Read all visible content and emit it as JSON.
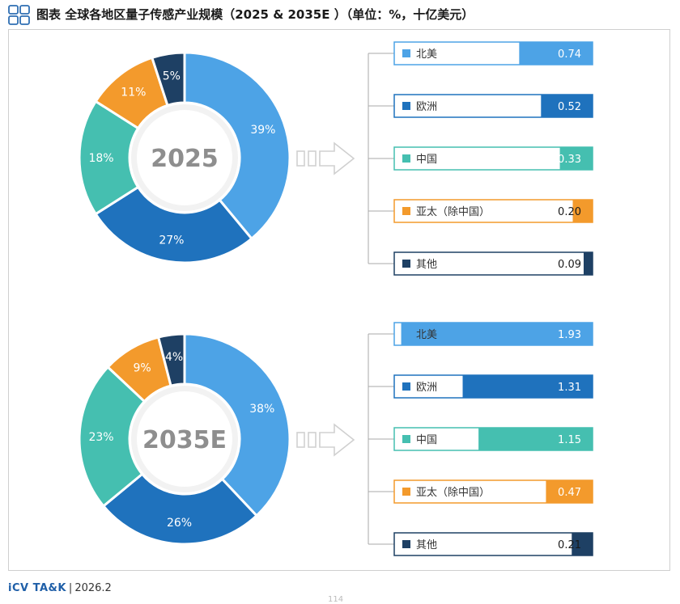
{
  "header": {
    "title": "图表 全球各地区量子传感产业规模（2025 & 2035E ）（单位：%，十亿美元）"
  },
  "colors": {
    "北美": "#4da3e6",
    "欧洲": "#1f72bd",
    "中国": "#45bfb0",
    "亚太（除中国）": "#f39a2c",
    "其他": "#1e4064",
    "arrow": "#d0d0d0",
    "center": "#8e8e8e"
  },
  "chart_data": [
    {
      "type": "pie",
      "variant": "donut",
      "center_label": "2025",
      "categories": [
        "北美",
        "欧洲",
        "中国",
        "亚太（除中国）",
        "其他"
      ],
      "share_values": [
        39,
        27,
        18,
        11,
        5
      ],
      "share_labels": [
        "39%",
        "27%",
        "18%",
        "11%",
        "5%"
      ]
    },
    {
      "type": "bar",
      "orientation": "horizontal",
      "year": "2025",
      "unit": "十亿美元",
      "categories": [
        "北美",
        "欧洲",
        "中国",
        "亚太（除中国）",
        "其他"
      ],
      "values": [
        0.74,
        0.52,
        0.33,
        0.2,
        0.09
      ],
      "value_labels": [
        "0.74",
        "0.52",
        "0.33",
        "0.20",
        "0.09"
      ],
      "xlim": [
        0,
        2.0
      ]
    },
    {
      "type": "pie",
      "variant": "donut",
      "center_label": "2035E",
      "categories": [
        "北美",
        "欧洲",
        "中国",
        "亚太（除中国）",
        "其他"
      ],
      "share_values": [
        38,
        26,
        23,
        9,
        4
      ],
      "share_labels": [
        "38%",
        "26%",
        "23%",
        "9%",
        "4%"
      ]
    },
    {
      "type": "bar",
      "orientation": "horizontal",
      "year": "2035E",
      "unit": "十亿美元",
      "categories": [
        "北美",
        "欧洲",
        "中国",
        "亚太（除中国）",
        "其他"
      ],
      "values": [
        1.93,
        1.31,
        1.15,
        0.47,
        0.21
      ],
      "value_labels": [
        "1.93",
        "1.31",
        "1.15",
        "0.47",
        "0.21"
      ],
      "xlim": [
        0,
        2.0
      ]
    }
  ],
  "footer": {
    "brand": "iCV TA&K",
    "separator": "|",
    "date": "2026.2"
  },
  "page_number": "114"
}
